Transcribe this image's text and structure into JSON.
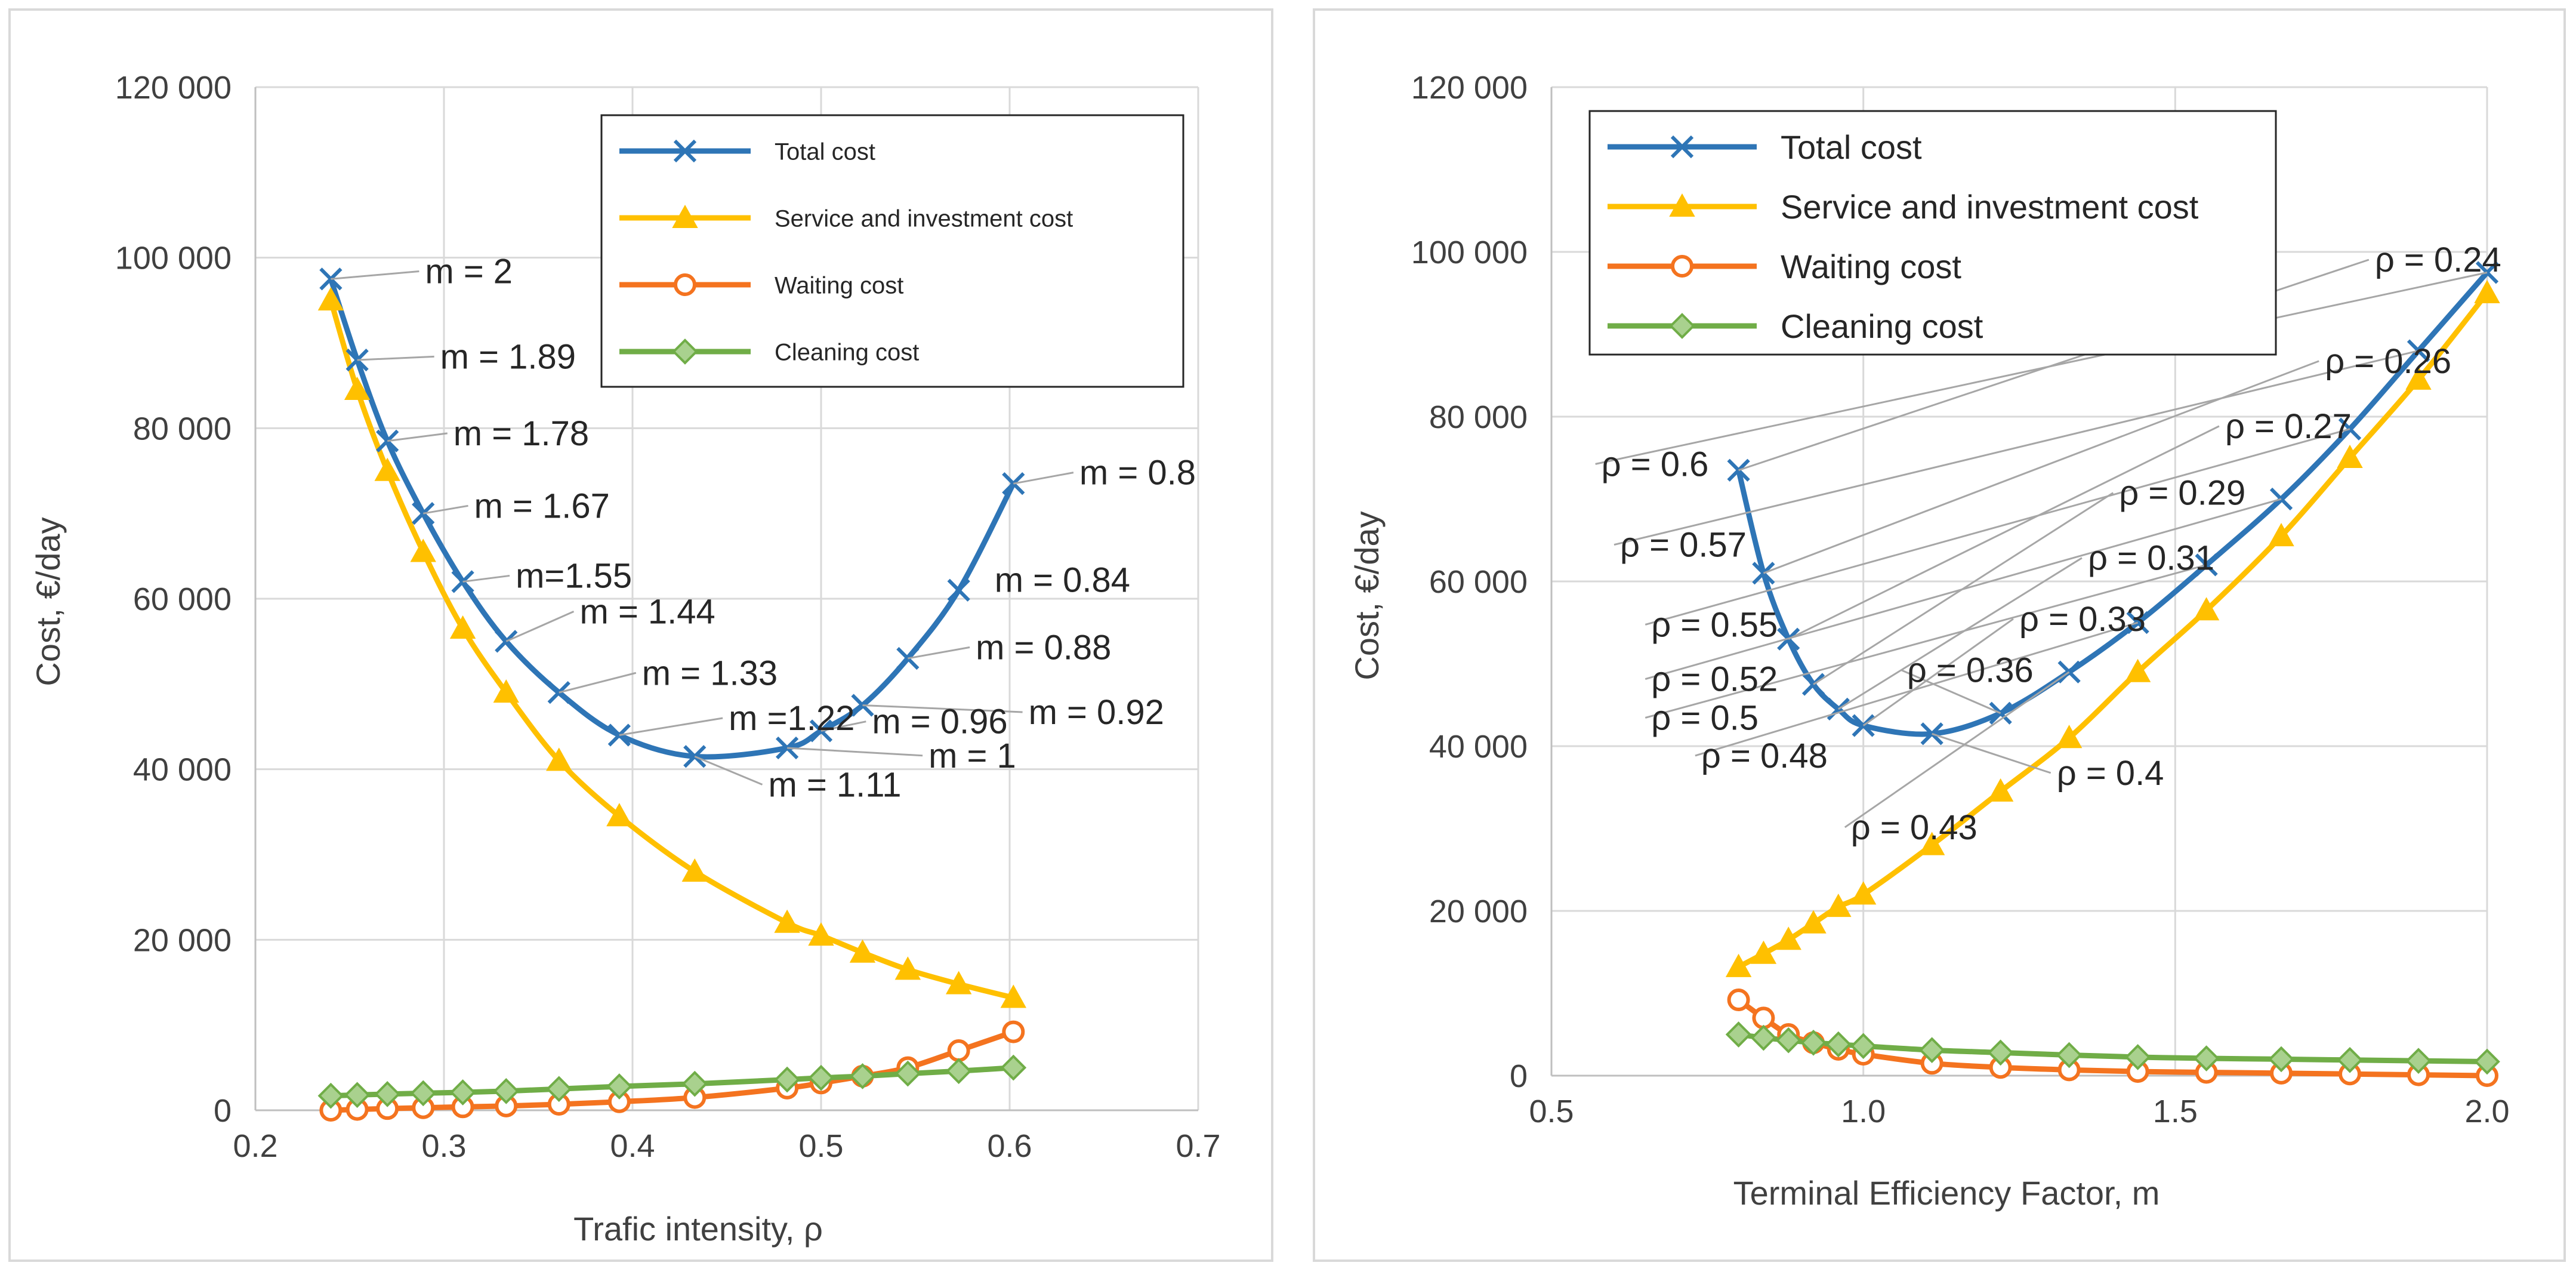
{
  "chart_data": [
    {
      "type": "line",
      "xlabel": "Trafic intensity, ρ",
      "ylabel": "Cost, €/day",
      "xlim": [
        0.2,
        0.7
      ],
      "ylim": [
        0,
        120000
      ],
      "x_ticks": [
        0.2,
        0.3,
        0.4,
        0.5,
        0.6,
        0.7
      ],
      "x_tick_labels": [
        "0.2",
        "0.3",
        "0.4",
        "0.5",
        "0.6",
        "0.7"
      ],
      "y_ticks": [
        0,
        20000,
        40000,
        60000,
        80000,
        100000,
        120000
      ],
      "y_tick_labels": [
        "0",
        "20 000",
        "40 000",
        "60 000",
        "80 000",
        "100 000",
        "120 000"
      ],
      "grid": true,
      "legend_position": "top-right",
      "series": [
        {
          "name": "Total cost",
          "color": "#2e75b6",
          "marker": "x",
          "x": [
            0.24,
            0.254,
            0.27,
            0.289,
            0.31,
            0.333,
            0.361,
            0.393,
            0.433,
            0.482,
            0.5,
            0.522,
            0.546,
            0.573,
            0.602
          ],
          "y": [
            97500,
            88000,
            78500,
            70000,
            62000,
            55000,
            49000,
            44000,
            41500,
            42500,
            44500,
            47500,
            53000,
            61000,
            73500
          ]
        },
        {
          "name": "Service and investment cost",
          "color": "#ffc000",
          "marker": "triangle",
          "x": [
            0.24,
            0.254,
            0.27,
            0.289,
            0.31,
            0.333,
            0.361,
            0.393,
            0.433,
            0.482,
            0.5,
            0.522,
            0.546,
            0.573,
            0.602
          ],
          "y": [
            95000,
            84500,
            75000,
            65500,
            56500,
            49000,
            41000,
            34500,
            28000,
            22000,
            20500,
            18500,
            16500,
            14800,
            13200
          ]
        },
        {
          "name": "Waiting cost",
          "color": "#f4731f",
          "marker": "circle",
          "x": [
            0.24,
            0.254,
            0.27,
            0.289,
            0.31,
            0.333,
            0.361,
            0.393,
            0.433,
            0.482,
            0.5,
            0.522,
            0.546,
            0.573,
            0.602
          ],
          "y": [
            0,
            100,
            200,
            300,
            400,
            500,
            700,
            1000,
            1500,
            2600,
            3200,
            4000,
            5000,
            7000,
            9200
          ]
        },
        {
          "name": "Cleaning cost",
          "color": "#70ad47",
          "marker": "diamond",
          "x": [
            0.24,
            0.254,
            0.27,
            0.289,
            0.31,
            0.333,
            0.361,
            0.393,
            0.433,
            0.482,
            0.5,
            0.522,
            0.546,
            0.573,
            0.602
          ],
          "y": [
            1700,
            1800,
            1900,
            2000,
            2100,
            2250,
            2500,
            2800,
            3100,
            3600,
            3800,
            4000,
            4300,
            4600,
            5000
          ]
        }
      ],
      "annotations": [
        {
          "text": "m = 2",
          "x": 0.29,
          "y": 97000
        },
        {
          "text": "m = 1.89",
          "x": 0.298,
          "y": 87000
        },
        {
          "text": "m = 1.78",
          "x": 0.305,
          "y": 78000
        },
        {
          "text": "m = 1.67",
          "x": 0.316,
          "y": 69500
        },
        {
          "text": "m=1.55",
          "x": 0.338,
          "y": 61300
        },
        {
          "text": "m = 1.44",
          "x": 0.372,
          "y": 57100
        },
        {
          "text": "m = 1.33",
          "x": 0.405,
          "y": 49900
        },
        {
          "text": "m =1.22",
          "x": 0.451,
          "y": 44600
        },
        {
          "text": "m = 1.11",
          "x": 0.472,
          "y": 36800
        },
        {
          "text": "m = 1",
          "x": 0.557,
          "y": 40200
        },
        {
          "text": "m = 0.96",
          "x": 0.527,
          "y": 44200
        },
        {
          "text": "m = 0.92",
          "x": 0.61,
          "y": 45300
        },
        {
          "text": "m = 0.88",
          "x": 0.582,
          "y": 52900
        },
        {
          "text": "m = 0.84",
          "x": 0.592,
          "y": 60800
        },
        {
          "text": "m = 0.8",
          "x": 0.637,
          "y": 73400
        }
      ]
    },
    {
      "type": "line",
      "xlabel": "Terminal Efficiency Factor, m",
      "ylabel": "Cost, €/day",
      "xlim": [
        0.5,
        2.0
      ],
      "ylim": [
        0,
        120000
      ],
      "x_ticks": [
        0.5,
        1.0,
        1.5,
        2.0
      ],
      "x_tick_labels": [
        "0.5",
        "1.0",
        "1.5",
        "2.0"
      ],
      "y_ticks": [
        0,
        20000,
        40000,
        60000,
        80000,
        100000,
        120000
      ],
      "y_tick_labels": [
        "0",
        "20 000",
        "40 000",
        "60 000",
        "80 000",
        "100 000",
        "120 000"
      ],
      "grid": true,
      "legend_position": "top-left",
      "series": [
        {
          "name": "Total cost",
          "color": "#2e75b6",
          "marker": "x",
          "x": [
            0.8,
            0.84,
            0.88,
            0.92,
            0.96,
            1.0,
            1.11,
            1.22,
            1.33,
            1.44,
            1.55,
            1.67,
            1.78,
            1.89,
            2.0
          ],
          "y": [
            73500,
            61000,
            53000,
            47500,
            44500,
            42500,
            41500,
            44000,
            49000,
            55000,
            62000,
            70000,
            78500,
            88000,
            97500
          ]
        },
        {
          "name": "Service and investment cost",
          "color": "#ffc000",
          "marker": "triangle",
          "x": [
            0.8,
            0.84,
            0.88,
            0.92,
            0.96,
            1.0,
            1.11,
            1.22,
            1.33,
            1.44,
            1.55,
            1.67,
            1.78,
            1.89,
            2.0
          ],
          "y": [
            13200,
            14800,
            16500,
            18500,
            20500,
            22000,
            28000,
            34500,
            41000,
            49000,
            56500,
            65500,
            75000,
            84500,
            95000
          ]
        },
        {
          "name": "Waiting cost",
          "color": "#f4731f",
          "marker": "circle",
          "x": [
            0.8,
            0.84,
            0.88,
            0.92,
            0.96,
            1.0,
            1.11,
            1.22,
            1.33,
            1.44,
            1.55,
            1.67,
            1.78,
            1.89,
            2.0
          ],
          "y": [
            9200,
            7000,
            5000,
            4000,
            3200,
            2600,
            1500,
            1000,
            700,
            500,
            400,
            300,
            200,
            100,
            0
          ]
        },
        {
          "name": "Cleaning cost",
          "color": "#70ad47",
          "marker": "diamond",
          "x": [
            0.8,
            0.84,
            0.88,
            0.92,
            0.96,
            1.0,
            1.11,
            1.22,
            1.33,
            1.44,
            1.55,
            1.67,
            1.78,
            1.89,
            2.0
          ],
          "y": [
            5000,
            4600,
            4300,
            4000,
            3800,
            3600,
            3100,
            2800,
            2500,
            2250,
            2100,
            2000,
            1900,
            1800,
            1700
          ]
        }
      ],
      "annotations": [
        {
          "text": "ρ = 0.6",
          "x": 0.58,
          "y": 72800
        },
        {
          "text": "ρ = 0.57",
          "x": 0.61,
          "y": 63000
        },
        {
          "text": "ρ = 0.55",
          "x": 0.66,
          "y": 53300
        },
        {
          "text": "ρ = 0.52",
          "x": 0.66,
          "y": 46700
        },
        {
          "text": "ρ = 0.5",
          "x": 0.66,
          "y": 42000
        },
        {
          "text": "ρ = 0.48",
          "x": 0.74,
          "y": 37400
        },
        {
          "text": "ρ = 0.43",
          "x": 0.98,
          "y": 28700
        },
        {
          "text": "ρ = 0.36",
          "x": 1.07,
          "y": 47800
        },
        {
          "text": "ρ = 0.4",
          "x": 1.31,
          "y": 35300
        },
        {
          "text": "ρ = 0.33",
          "x": 1.25,
          "y": 54000
        },
        {
          "text": "ρ = 0.31",
          "x": 1.36,
          "y": 61400
        },
        {
          "text": "ρ = 0.29",
          "x": 1.41,
          "y": 69300
        },
        {
          "text": "ρ = 0.27",
          "x": 1.58,
          "y": 77400
        },
        {
          "text": "ρ = 0.26",
          "x": 1.74,
          "y": 85300
        },
        {
          "text": "ρ = 0.24",
          "x": 1.82,
          "y": 97600
        }
      ]
    }
  ]
}
